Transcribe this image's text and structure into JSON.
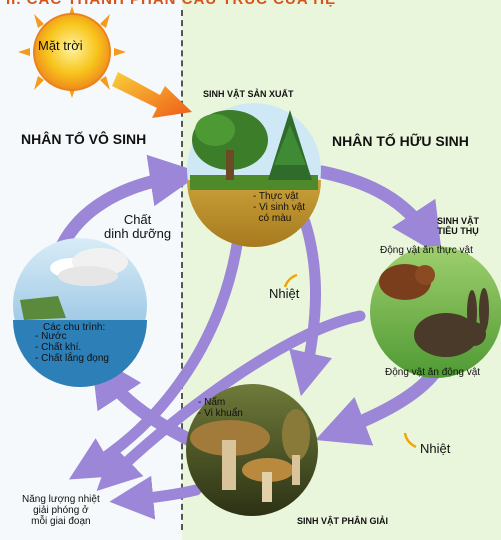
{
  "title_fragment": "II. CÁC THÀNH PHẦN CẤU TRÚC CỦA HỆ",
  "sun": {
    "label": "Mặt trời"
  },
  "left_heading": "NHÂN TỐ VÔ SINH",
  "right_heading": "NHÂN TỐ HỮU SINH",
  "producer": {
    "title": "SINH VẬT SẢN XUẤT",
    "items": "- Thực vật\n- Vi sinh vật\n  có màu"
  },
  "consumer": {
    "title": "SINH VẬT\nTIÊU THỤ",
    "herbivore": "Động vật ăn thực vật",
    "carnivore": "Động  vật ăn động vật"
  },
  "decomposer": {
    "title": "SINH VẬT PHÂN GIẢI",
    "items": "- Nấm\n- Vi khuẩn"
  },
  "abiotic": {
    "title": "Các chu trình:",
    "items": "- Nước\n- Chất khí.\n- Chất lắng đọng"
  },
  "nutrients_label": "Chất\ndinh dưỡng",
  "heat_label_1": "Nhiệt",
  "heat_label_2": "Nhiệt",
  "energy_label": "Năng lượng nhiệt\ngiải phóng ở\nmỗi giai đoạn",
  "colors": {
    "arrow": "#9b86d8",
    "arrow_dark": "#6d58b8",
    "sun": "#f7c51c",
    "sun_arrow": "#f06a1c",
    "title": "#d5541a"
  }
}
